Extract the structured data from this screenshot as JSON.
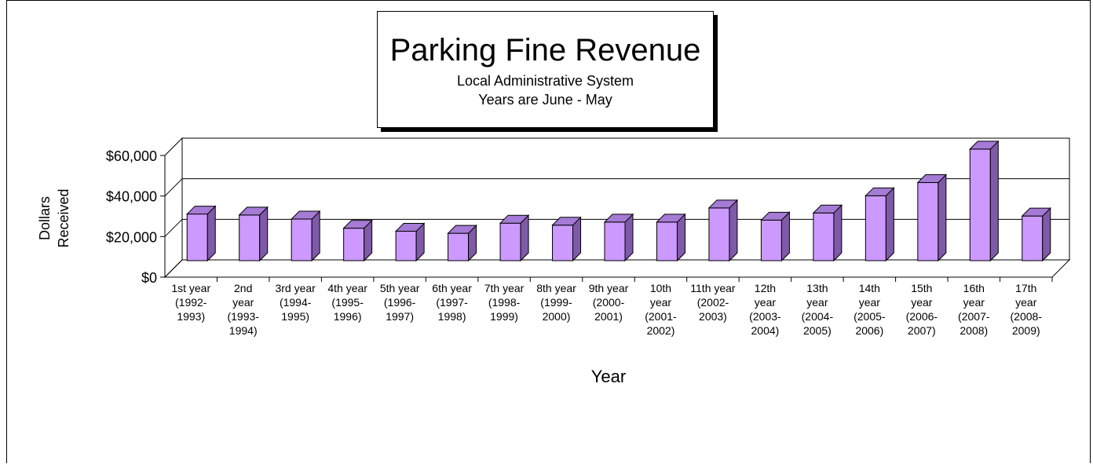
{
  "chart_data": {
    "type": "bar",
    "title": "Parking Fine Revenue",
    "subtitle_lines": [
      "Local Administrative System",
      "Years are June - May"
    ],
    "xlabel": "Year",
    "ylabel_lines": [
      "Dollars",
      "Received"
    ],
    "ylim": [
      0,
      60000
    ],
    "yticks": [
      0,
      20000,
      40000,
      60000
    ],
    "ytick_labels": [
      "$0",
      "$20,000",
      "$40,000",
      "$60,000"
    ],
    "grid": true,
    "categories": [
      [
        "1st year",
        "(1992-",
        "1993)"
      ],
      [
        "2nd",
        "year",
        "(1993-",
        "1994)"
      ],
      [
        "3rd year",
        "(1994-",
        "1995)"
      ],
      [
        "4th year",
        "(1995-",
        "1996)"
      ],
      [
        "5th year",
        "(1996-",
        "1997)"
      ],
      [
        "6th year",
        "(1997-",
        "1998)"
      ],
      [
        "7th year",
        "(1998-",
        "1999)"
      ],
      [
        "8th year",
        "(1999-",
        "2000)"
      ],
      [
        "9th year",
        "(2000-",
        "2001)"
      ],
      [
        "10th",
        "year",
        "(2001-",
        "2002)"
      ],
      [
        "11th year",
        "(2002-",
        "2003)"
      ],
      [
        "12th",
        "year",
        "(2003-",
        "2004)"
      ],
      [
        "13th",
        "year",
        "(2004-",
        "2005)"
      ],
      [
        "14th",
        "year",
        "(2005-",
        "2006)"
      ],
      [
        "15th",
        "year",
        "(2006-",
        "2007)"
      ],
      [
        "16th",
        "year",
        "(2007-",
        "2008)"
      ],
      [
        "17th",
        "year",
        "(2008-",
        "2009)"
      ]
    ],
    "values": [
      23000,
      22500,
      20500,
      16000,
      14500,
      13500,
      18500,
      17500,
      19000,
      19000,
      26000,
      20000,
      23500,
      32000,
      38500,
      55000,
      22000
    ],
    "bar_color": "#cc99ff",
    "bar_side_color": "#7f5aa8",
    "bar_top_color": "#a57bd6"
  }
}
